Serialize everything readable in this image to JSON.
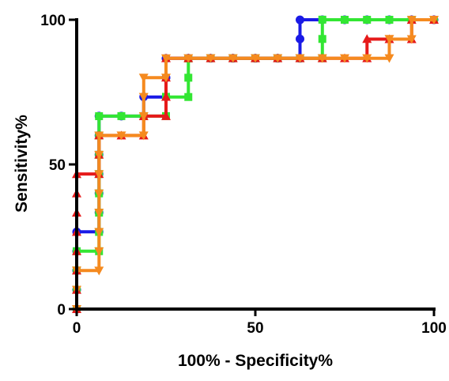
{
  "chart_data": {
    "type": "line",
    "title": "",
    "xlabel": "100% - Specificity%",
    "ylabel": "Sensitivity%",
    "xlim": [
      0,
      100
    ],
    "ylim": [
      0,
      100
    ],
    "x_ticks": [
      "0",
      "50",
      "100"
    ],
    "y_ticks": [
      "0",
      "50",
      "100"
    ],
    "grid": false,
    "legend": "none",
    "series": [
      {
        "color": "#1a1ae6",
        "marker": "circle",
        "points": [
          [
            0,
            0
          ],
          [
            0,
            26.7
          ],
          [
            6.25,
            26.7
          ],
          [
            6.25,
            66.7
          ],
          [
            18.75,
            66.7
          ],
          [
            18.75,
            73.3
          ],
          [
            25,
            73.3
          ],
          [
            25,
            86.7
          ],
          [
            62.5,
            86.7
          ],
          [
            62.5,
            93.3
          ],
          [
            62.5,
            100
          ],
          [
            100,
            100
          ]
        ]
      },
      {
        "color": "#33e633",
        "marker": "square",
        "points": [
          [
            0,
            0
          ],
          [
            0,
            20
          ],
          [
            6.25,
            20
          ],
          [
            6.25,
            66.7
          ],
          [
            25,
            66.7
          ],
          [
            25,
            73.3
          ],
          [
            31.25,
            73.3
          ],
          [
            31.25,
            86.7
          ],
          [
            68.75,
            86.7
          ],
          [
            68.75,
            100
          ],
          [
            100,
            100
          ]
        ]
      },
      {
        "color": "#e61a1a",
        "marker": "triangle-up",
        "points": [
          [
            0,
            0
          ],
          [
            0,
            46.7
          ],
          [
            6.25,
            46.7
          ],
          [
            6.25,
            60
          ],
          [
            18.75,
            60
          ],
          [
            18.75,
            66.7
          ],
          [
            25,
            66.7
          ],
          [
            25,
            86.7
          ],
          [
            81.25,
            86.7
          ],
          [
            81.25,
            93.3
          ],
          [
            93.75,
            93.3
          ],
          [
            93.75,
            100
          ],
          [
            100,
            100
          ]
        ]
      },
      {
        "color": "#f58a1f",
        "marker": "triangle-down",
        "points": [
          [
            0,
            0
          ],
          [
            0,
            13.3
          ],
          [
            6.25,
            13.3
          ],
          [
            6.25,
            60
          ],
          [
            18.75,
            60
          ],
          [
            18.75,
            80
          ],
          [
            25,
            80
          ],
          [
            25,
            86.7
          ],
          [
            87.5,
            86.7
          ],
          [
            87.5,
            93.3
          ],
          [
            93.75,
            93.3
          ],
          [
            93.75,
            100
          ],
          [
            100,
            100
          ]
        ]
      }
    ]
  }
}
